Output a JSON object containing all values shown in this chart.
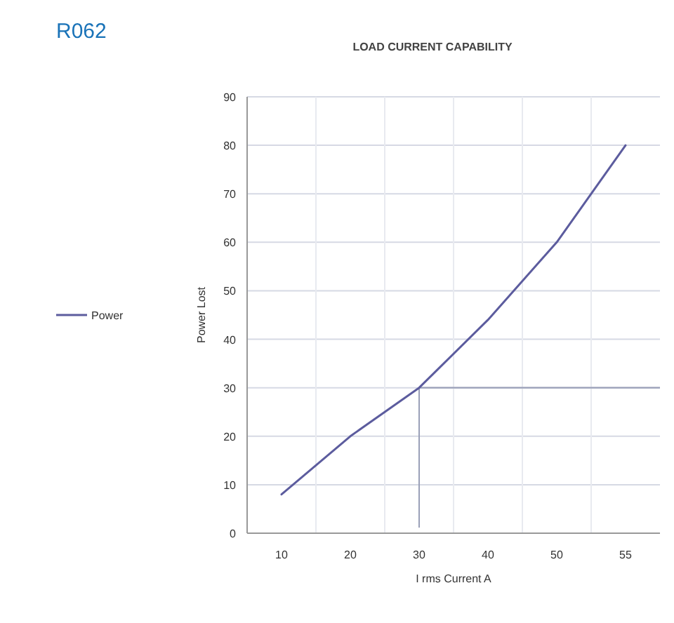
{
  "chart_data": {
    "type": "line",
    "title": "LOAD CURRENT CAPABILITY",
    "xlabel": "I rms  Current A",
    "ylabel": "Power Lost",
    "annotations": [
      "R062"
    ],
    "categories": [
      "10",
      "20",
      "30",
      "40",
      "50",
      "55"
    ],
    "series": [
      {
        "name": "Power",
        "color": "#5c5c9e",
        "values": [
          8,
          20,
          30,
          44,
          60,
          80
        ]
      }
    ],
    "ylim": [
      0,
      90
    ],
    "yticks": [
      0,
      10,
      20,
      30,
      40,
      50,
      60,
      70,
      80,
      90
    ],
    "grid": true,
    "legend": "left",
    "ref_lines": [
      {
        "axis": "y",
        "value": 30,
        "color": "#9aa0b8"
      },
      {
        "axis": "x",
        "value": "30",
        "color": "#9aa0b8"
      }
    ]
  }
}
